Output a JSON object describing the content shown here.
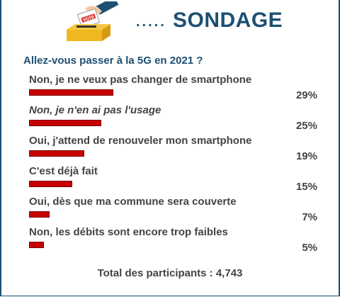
{
  "header": {
    "dots": ".....",
    "title": "SONDAGE",
    "logo_label": "VOTE",
    "logo_icon": "ballot-box-vote-icon"
  },
  "poll": {
    "question": "Allez-vous passer à la 5G en 2021 ?",
    "bar_color": "#c80000",
    "options": [
      {
        "label": "Non, je ne veux pas changer de smartphone",
        "percent_text": "29%",
        "percent": 29,
        "italic": false
      },
      {
        "label": "Non, je n'en ai pas l'usage",
        "percent_text": "25%",
        "percent": 25,
        "italic": true
      },
      {
        "label": "Oui, j'attend de renouveler mon smartphone",
        "percent_text": "19%",
        "percent": 19,
        "italic": false
      },
      {
        "label": "C'est déjà fait",
        "percent_text": "15%",
        "percent": 15,
        "italic": false
      },
      {
        "label": "Oui, dès que ma commune sera couverte",
        "percent_text": "7%",
        "percent": 7,
        "italic": false
      },
      {
        "label": "Non, les débits sont encore trop faibles",
        "percent_text": "5%",
        "percent": 5,
        "italic": false
      }
    ],
    "total": "Total des participants : 4,743"
  }
}
